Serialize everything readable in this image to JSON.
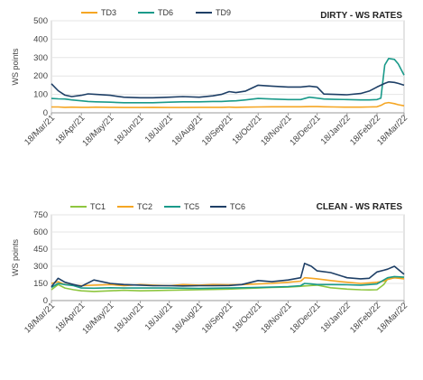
{
  "chart_data": [
    {
      "type": "line",
      "title": "DIRTY - WS RATES",
      "xlabel": "",
      "ylabel": "WS points",
      "ylim": [
        0,
        500
      ],
      "yticks": [
        0,
        100,
        200,
        300,
        400,
        500
      ],
      "grid": "horizontal",
      "legend_position": "top",
      "x_tick_labels": [
        "18/Mar/21",
        "18/Apr/21",
        "18/May/21",
        "18/Jun/21",
        "18/Jul/21",
        "18/Aug/21",
        "18/Sep/21",
        "18/Oct/21",
        "18/Nov/21",
        "18/Dec/21",
        "18/Jan/22",
        "18/Feb/22",
        "18/Mar/22"
      ],
      "x": [
        "2021-03-18",
        "2021-03-25",
        "2021-04-01",
        "2021-04-08",
        "2021-04-18",
        "2021-04-25",
        "2021-05-03",
        "2021-05-18",
        "2021-06-01",
        "2021-06-18",
        "2021-07-01",
        "2021-07-18",
        "2021-08-01",
        "2021-08-18",
        "2021-09-01",
        "2021-09-10",
        "2021-09-18",
        "2021-09-25",
        "2021-10-05",
        "2021-10-18",
        "2021-11-01",
        "2021-11-18",
        "2021-12-01",
        "2021-12-10",
        "2021-12-18",
        "2021-12-25",
        "2022-01-05",
        "2022-01-18",
        "2022-02-01",
        "2022-02-10",
        "2022-02-18",
        "2022-02-22",
        "2022-02-26",
        "2022-03-02",
        "2022-03-08",
        "2022-03-12",
        "2022-03-18"
      ],
      "series": [
        {
          "name": "TD3",
          "color": "#f5a623",
          "values": [
            32,
            32,
            30,
            31,
            30,
            30,
            31,
            30,
            29,
            29,
            30,
            29,
            29,
            30,
            30,
            30,
            31,
            30,
            31,
            32,
            33,
            33,
            33,
            34,
            34,
            33,
            32,
            31,
            31,
            32,
            33,
            40,
            52,
            56,
            50,
            44,
            38
          ]
        },
        {
          "name": "TD6",
          "color": "#1a9a8a",
          "values": [
            78,
            76,
            75,
            70,
            65,
            62,
            60,
            58,
            55,
            55,
            55,
            58,
            60,
            60,
            62,
            62,
            64,
            65,
            70,
            78,
            75,
            72,
            72,
            85,
            80,
            75,
            73,
            72,
            70,
            70,
            72,
            80,
            260,
            295,
            290,
            265,
            205
          ]
        },
        {
          "name": "TD9",
          "color": "#1e3f66",
          "values": [
            158,
            120,
            96,
            88,
            95,
            103,
            100,
            95,
            85,
            82,
            82,
            85,
            88,
            85,
            92,
            100,
            115,
            110,
            118,
            150,
            145,
            140,
            140,
            145,
            140,
            102,
            100,
            98,
            105,
            118,
            140,
            150,
            160,
            168,
            165,
            160,
            150
          ]
        }
      ]
    },
    {
      "type": "line",
      "title": "CLEAN - WS RATES",
      "xlabel": "",
      "ylabel": "WS points",
      "ylim": [
        0,
        750
      ],
      "yticks": [
        0,
        150,
        300,
        450,
        600,
        750
      ],
      "grid": "horizontal",
      "legend_position": "top",
      "x_tick_labels": [
        "18/Mar/21",
        "18/Apr/21",
        "18/May/21",
        "18/Jun/21",
        "18/Jul/21",
        "18/Aug/21",
        "18/Sep/21",
        "18/Oct/21",
        "18/Nov/21",
        "18/Dec/21",
        "18/Jan/22",
        "18/Feb/22",
        "18/Mar/22"
      ],
      "x": [
        "2021-03-18",
        "2021-03-25",
        "2021-04-01",
        "2021-04-10",
        "2021-04-18",
        "2021-05-01",
        "2021-05-18",
        "2021-06-01",
        "2021-06-18",
        "2021-07-01",
        "2021-07-18",
        "2021-08-01",
        "2021-08-18",
        "2021-09-01",
        "2021-09-18",
        "2021-10-01",
        "2021-10-18",
        "2021-11-01",
        "2021-11-18",
        "2021-12-01",
        "2021-12-05",
        "2021-12-12",
        "2021-12-18",
        "2022-01-01",
        "2022-01-18",
        "2022-02-01",
        "2022-02-10",
        "2022-02-18",
        "2022-02-25",
        "2022-03-01",
        "2022-03-08",
        "2022-03-18"
      ],
      "series": [
        {
          "name": "TC1",
          "color": "#8ec63f",
          "values": [
            95,
            140,
            110,
            95,
            85,
            80,
            85,
            90,
            85,
            88,
            90,
            92,
            95,
            97,
            100,
            105,
            110,
            115,
            118,
            125,
            128,
            132,
            135,
            112,
            100,
            95,
            93,
            95,
            140,
            190,
            200,
            195
          ]
        },
        {
          "name": "TC2",
          "color": "#f5a623",
          "values": [
            150,
            165,
            140,
            135,
            130,
            135,
            140,
            130,
            140,
            135,
            130,
            140,
            135,
            140,
            138,
            140,
            145,
            150,
            160,
            170,
            200,
            195,
            190,
            175,
            160,
            150,
            155,
            160,
            170,
            185,
            200,
            190
          ]
        },
        {
          "name": "TC5",
          "color": "#1a9a8a",
          "values": [
            115,
            150,
            140,
            130,
            110,
            108,
            112,
            110,
            110,
            110,
            110,
            108,
            106,
            108,
            110,
            112,
            115,
            118,
            122,
            130,
            150,
            145,
            140,
            140,
            138,
            135,
            140,
            145,
            180,
            200,
            210,
            205
          ]
        },
        {
          "name": "TC6",
          "color": "#1e3f66",
          "values": [
            120,
            195,
            160,
            140,
            125,
            180,
            150,
            140,
            135,
            130,
            130,
            128,
            130,
            130,
            132,
            140,
            175,
            165,
            180,
            200,
            325,
            300,
            260,
            245,
            200,
            190,
            195,
            250,
            265,
            275,
            300,
            230
          ]
        }
      ]
    }
  ]
}
